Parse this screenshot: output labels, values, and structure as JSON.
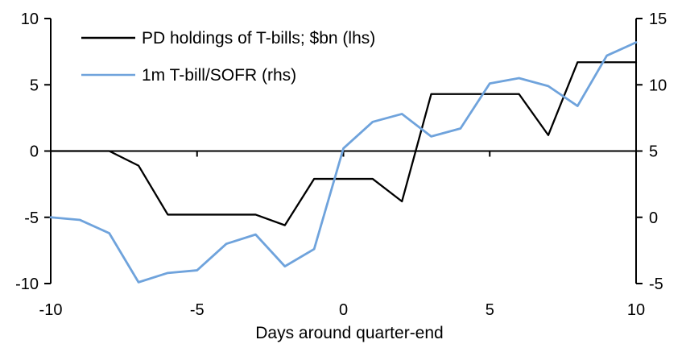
{
  "chart_data": {
    "type": "line",
    "title": "",
    "xlabel": "Days around quarter-end",
    "grid": false,
    "legend_position": "top-left",
    "x": [
      -10,
      -9,
      -8,
      -7,
      -6,
      -5,
      -4,
      -3,
      -2,
      -1,
      0,
      1,
      2,
      3,
      4,
      5,
      6,
      7,
      8,
      9,
      10
    ],
    "series": [
      {
        "name": "PD holdings of T-bills; $bn (lhs)",
        "axis": "left",
        "color": "#000000",
        "stroke_width": 2.3,
        "values": [
          0,
          0,
          0,
          -1.1,
          -4.8,
          -4.8,
          -4.8,
          -4.8,
          -5.6,
          -2.1,
          -2.1,
          -2.1,
          -3.8,
          4.3,
          4.3,
          4.3,
          4.3,
          1.2,
          6.7,
          6.7,
          6.7
        ]
      },
      {
        "name": "1m T-bill/SOFR (rhs)",
        "axis": "right",
        "color": "#6FA3DC",
        "stroke_width": 2.8,
        "values": [
          0,
          -0.2,
          -1.2,
          -4.9,
          -4.2,
          -4.0,
          -2.0,
          -1.3,
          -3.7,
          -2.4,
          5.2,
          7.2,
          7.8,
          6.1,
          6.7,
          10.1,
          10.5,
          9.9,
          8.4,
          12.2,
          13.2
        ]
      }
    ],
    "left_axis": {
      "range": [
        -10,
        10
      ],
      "ticks": [
        10,
        5,
        0,
        -5,
        -10
      ]
    },
    "right_axis": {
      "range": [
        -5,
        15
      ],
      "ticks": [
        15,
        10,
        5,
        0,
        -5
      ]
    },
    "x_axis": {
      "range": [
        -10,
        10
      ],
      "tick_labels": [
        -10,
        -5,
        0,
        5,
        10
      ],
      "tick_marks": [
        -5,
        0,
        5
      ]
    }
  },
  "legend": {
    "items": [
      {
        "label": "PD holdings of T-bills; $bn (lhs)",
        "color": "#000000"
      },
      {
        "label": "1m T-bill/SOFR (rhs)",
        "color": "#6FA3DC"
      }
    ]
  },
  "colors": {
    "background": "#ffffff",
    "axis": "#000000",
    "series_black": "#000000",
    "series_blue": "#6FA3DC"
  }
}
